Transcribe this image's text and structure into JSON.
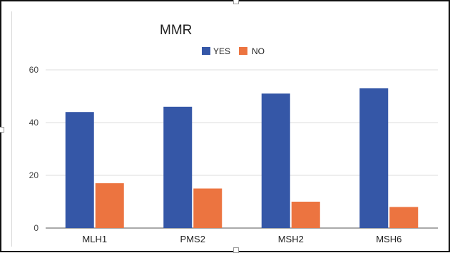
{
  "chart_data": {
    "type": "bar",
    "title": "MMR",
    "categories": [
      "MLH1",
      "PMS2",
      "MSH2",
      "MSH6"
    ],
    "series": [
      {
        "name": "YES",
        "color": "#3557a7",
        "values": [
          44,
          46,
          51,
          53
        ]
      },
      {
        "name": "NO",
        "color": "#ec7440",
        "values": [
          17,
          15,
          10,
          8
        ]
      }
    ],
    "xlabel": "",
    "ylabel": "",
    "ylim": [
      0,
      60
    ],
    "yticks": [
      0,
      20,
      40,
      60
    ],
    "grid": true,
    "legend_position": "top"
  }
}
